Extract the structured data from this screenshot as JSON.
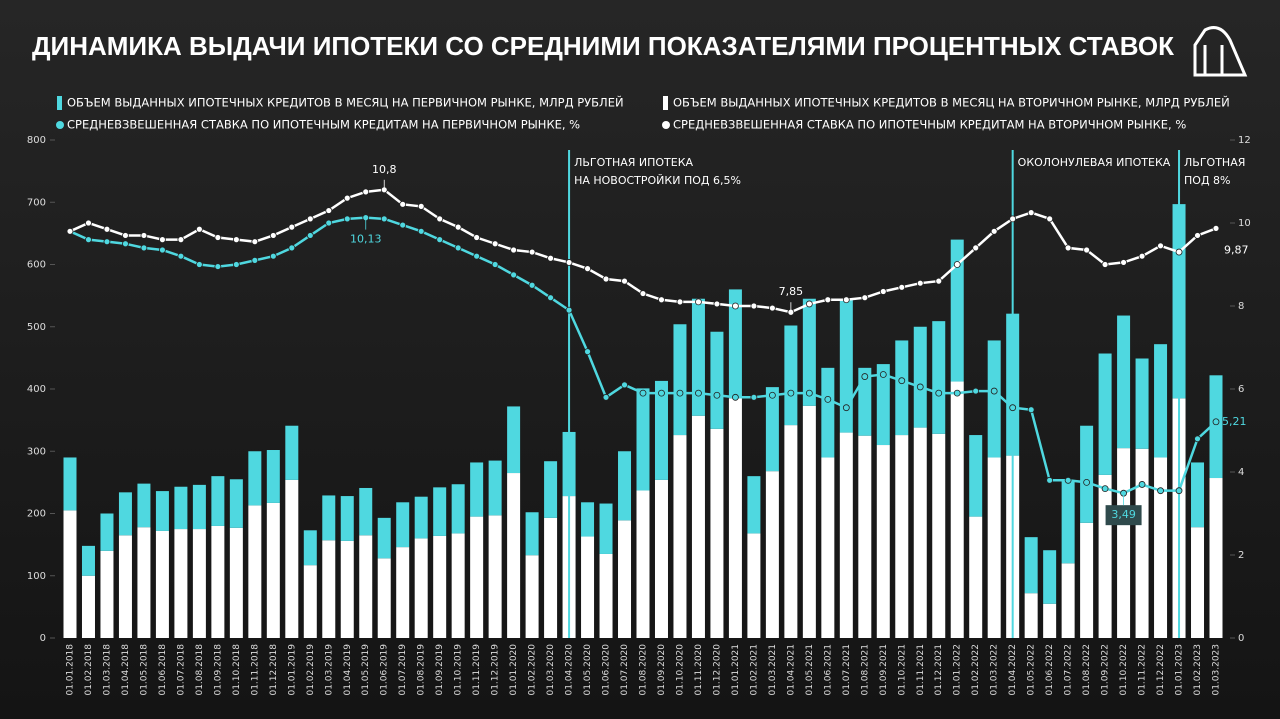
{
  "chart_data": {
    "type": "bar",
    "title": "ДИНАМИКА ВЫДАЧИ ИПОТЕКИ СО СРЕДНИМИ ПОКАЗАТЕЛЯМИ ПРОЦЕНТНЫХ СТАВОК",
    "categories": [
      "01.01.2018",
      "01.02.2018",
      "01.03.2018",
      "01.04.2018",
      "01.05.2018",
      "01.06.2018",
      "01.07.2018",
      "01.08.2018",
      "01.09.2018",
      "01.10.2018",
      "01.11.2018",
      "01.12.2018",
      "01.01.2019",
      "01.02.2019",
      "01.03.2019",
      "01.04.2019",
      "01.05.2019",
      "01.06.2019",
      "01.07.2019",
      "01.08.2019",
      "01.09.2019",
      "01.10.2019",
      "01.11.2019",
      "01.12.2019",
      "01.01.2020",
      "01.02.2020",
      "01.03.2020",
      "01.04.2020",
      "01.05.2020",
      "01.06.2020",
      "01.07.2020",
      "01.08.2020",
      "01.09.2020",
      "01.10.2020",
      "01.11.2020",
      "01.12.2020",
      "01.01.2021",
      "01.02.2021",
      "01.03.2021",
      "01.04.2021",
      "01.05.2021",
      "01.06.2021",
      "01.07.2021",
      "01.08.2021",
      "01.09.2021",
      "01.10.2021",
      "01.11.2021",
      "01.12.2021",
      "01.01.2022",
      "01.02.2022",
      "01.03.2022",
      "01.04.2022",
      "01.05.2022",
      "01.06.2022",
      "01.07.2022",
      "01.08.2022",
      "01.09.2022",
      "01.10.2022",
      "01.11.2022",
      "01.12.2022",
      "01.01.2023",
      "01.02.2023",
      "01.03.2023"
    ],
    "series": [
      {
        "name": "ОБЪЕМ ВЫДАННЫХ ИПОТЕЧНЫХ КРЕДИТОВ В МЕСЯЦ НА ПЕРВИЧНОМ РЫНКЕ, МЛРД РУБЛЕЙ",
        "type": "bar",
        "color": "#4fd8e0",
        "values": [
          85,
          48,
          60,
          69,
          70,
          64,
          68,
          71,
          80,
          78,
          87,
          85,
          87,
          56,
          72,
          72,
          76,
          65,
          72,
          67,
          78,
          79,
          87,
          88,
          107,
          69,
          91,
          103,
          55,
          81,
          111,
          164,
          159,
          178,
          188,
          156,
          175,
          92,
          135,
          160,
          172,
          144,
          215,
          109,
          130,
          152,
          162,
          181,
          228,
          131,
          188,
          228,
          90,
          86,
          133,
          156,
          195,
          213,
          145,
          182,
          312,
          104,
          165
        ]
      },
      {
        "name": "ОБЪЕМ ВЫДАННЫХ ИПОТЕЧНЫХ КРЕДИТОВ В МЕСЯЦ НА ВТОРИЧНОМ РЫНКЕ, МЛРД РУБЛЕЙ",
        "type": "bar",
        "color": "#ffffff",
        "values": [
          205,
          100,
          140,
          165,
          178,
          172,
          175,
          175,
          180,
          177,
          213,
          217,
          254,
          117,
          157,
          156,
          165,
          128,
          146,
          160,
          164,
          168,
          195,
          197,
          265,
          133,
          193,
          228,
          163,
          135,
          189,
          237,
          254,
          326,
          357,
          336,
          385,
          168,
          268,
          342,
          373,
          290,
          330,
          325,
          310,
          326,
          338,
          328,
          412,
          195,
          290,
          293,
          72,
          55,
          120,
          185,
          262,
          305,
          304,
          290,
          385,
          178,
          257
        ]
      },
      {
        "name": "СРЕДНЕВЗВЕШЕННАЯ СТАВКА ПО ИПОТЕЧНЫМ КРЕДИТАМ НА ПЕРВИЧНОМ РЫНКЕ, %",
        "type": "line",
        "axis": "y2",
        "color": "#4fd8e0",
        "values": [
          9.8,
          9.6,
          9.55,
          9.5,
          9.4,
          9.35,
          9.2,
          9.0,
          8.95,
          9.0,
          9.1,
          9.2,
          9.4,
          9.7,
          10.0,
          10.1,
          10.13,
          10.1,
          9.95,
          9.8,
          9.6,
          9.4,
          9.2,
          9.0,
          8.75,
          8.5,
          8.2,
          7.9,
          6.9,
          5.8,
          6.1,
          5.9,
          5.9,
          5.9,
          5.9,
          5.85,
          5.8,
          5.8,
          5.85,
          5.9,
          5.9,
          5.75,
          5.55,
          6.3,
          6.35,
          6.2,
          6.05,
          5.9,
          5.9,
          5.95,
          5.95,
          5.55,
          5.5,
          3.8,
          3.8,
          3.75,
          3.6,
          3.49,
          3.7,
          3.55,
          3.55,
          4.8,
          5.21
        ],
        "value_labels": [
          null,
          null,
          null,
          null,
          null,
          null,
          null,
          null,
          null,
          null,
          null,
          null,
          null,
          null,
          null,
          null,
          "10,13",
          null,
          null,
          null,
          null,
          null,
          null,
          null,
          null,
          null,
          null,
          null,
          null,
          null,
          null,
          null,
          null,
          null,
          null,
          null,
          null,
          null,
          null,
          null,
          null,
          null,
          null,
          null,
          null,
          null,
          null,
          null,
          null,
          null,
          null,
          null,
          null,
          null,
          null,
          null,
          null,
          "3,49",
          null,
          null,
          null,
          null,
          "5,21"
        ]
      },
      {
        "name": "СРЕДНЕВЗВЕШЕННАЯ СТАВКА ПО ИПОТЕЧНЫМ КРЕДИТАМ НА ВТОРИЧНОМ РЫНКЕ, %",
        "type": "line",
        "axis": "y2",
        "color": "#ffffff",
        "values": [
          9.8,
          10.0,
          9.85,
          9.7,
          9.7,
          9.6,
          9.6,
          9.85,
          9.65,
          9.6,
          9.55,
          9.7,
          9.9,
          10.1,
          10.3,
          10.6,
          10.75,
          10.8,
          10.45,
          10.4,
          10.1,
          9.9,
          9.65,
          9.5,
          9.35,
          9.3,
          9.15,
          9.05,
          8.9,
          8.65,
          8.6,
          8.3,
          8.15,
          8.1,
          8.1,
          8.05,
          8.0,
          8.0,
          7.95,
          7.85,
          8.05,
          8.15,
          8.15,
          8.2,
          8.35,
          8.45,
          8.55,
          8.6,
          9.0,
          9.4,
          9.8,
          10.1,
          10.25,
          10.1,
          9.4,
          9.35,
          9.0,
          9.05,
          9.2,
          9.45,
          9.3,
          9.7,
          9.87
        ],
        "value_labels": [
          null,
          null,
          null,
          null,
          null,
          null,
          null,
          null,
          null,
          null,
          null,
          null,
          null,
          null,
          null,
          null,
          null,
          "10,8",
          null,
          null,
          null,
          null,
          null,
          null,
          null,
          null,
          null,
          null,
          null,
          null,
          null,
          null,
          null,
          null,
          null,
          null,
          null,
          null,
          null,
          "7,85",
          null,
          null,
          null,
          null,
          null,
          null,
          null,
          null,
          null,
          null,
          null,
          null,
          null,
          null,
          null,
          null,
          null,
          null,
          null,
          null,
          null,
          null,
          "9,87"
        ]
      }
    ],
    "ylim": [
      0,
      800
    ],
    "yticks": [
      0,
      100,
      200,
      300,
      400,
      500,
      600,
      700,
      800
    ],
    "y2lim": [
      0,
      12
    ],
    "y2ticks": [
      0,
      2,
      4,
      6,
      8,
      10,
      12
    ],
    "annotations": [
      {
        "x": "01.04.2020",
        "color": "#4fd8e0",
        "text": [
          "ЛЬГОТНАЯ ИПОТЕКА",
          "НА НОВОСТРОЙКИ ПОД 6,5%"
        ]
      },
      {
        "x": "01.04.2022",
        "color": "#4fd8e0",
        "text": [
          "ОКОЛОНУЛЕВАЯ ИПОТЕКА"
        ]
      },
      {
        "x": "01.01.2023",
        "color": "#4fd8e0",
        "text": [
          "ЛЬГОТНАЯ",
          "ПОД 8%"
        ]
      }
    ]
  }
}
